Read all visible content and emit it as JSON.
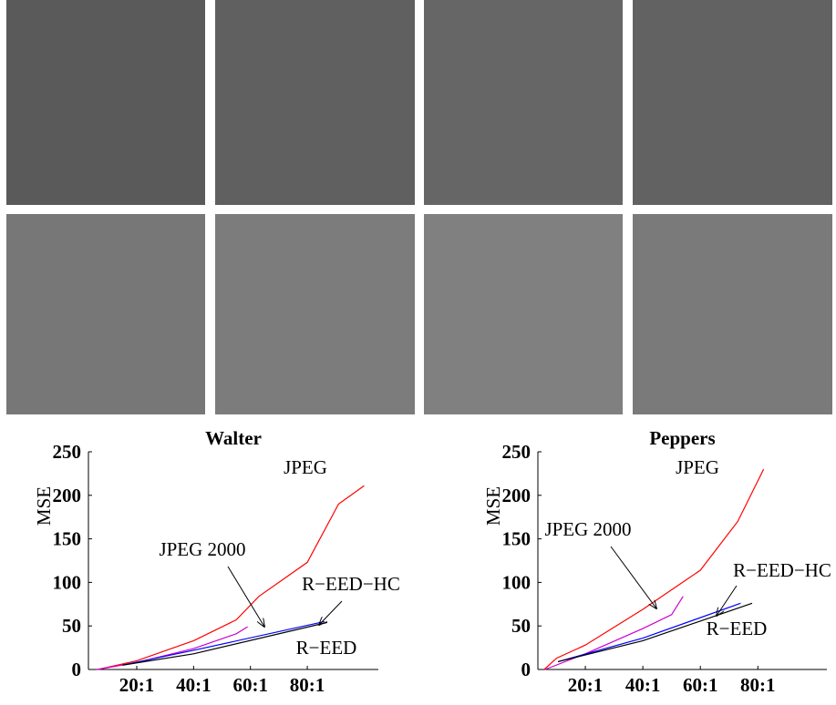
{
  "chart_data": [
    {
      "type": "line",
      "title": "Walter",
      "y_label": "MSE",
      "xlim": [
        3,
        105
      ],
      "ylim": [
        0,
        250
      ],
      "xticks": [
        {
          "value": 20,
          "label": "20:1"
        },
        {
          "value": 40,
          "label": "40:1"
        },
        {
          "value": 60,
          "label": "60:1"
        },
        {
          "value": 80,
          "label": "80:1"
        }
      ],
      "yticks": [
        0,
        50,
        100,
        150,
        200,
        250
      ],
      "annotations": [
        "JPEG",
        "JPEG 2000",
        "R−EED−HC",
        "R−EED"
      ],
      "series": [
        {
          "name": "JPEG",
          "color": "#ff0000",
          "x": [
            6.4,
            20,
            40,
            55,
            63,
            80,
            91,
            100
          ],
          "values": [
            0,
            10,
            33,
            57,
            84,
            123,
            190,
            211
          ]
        },
        {
          "name": "JPEG 2000",
          "color": "#cc00cc",
          "x": [
            6,
            20,
            40,
            55,
            59
          ],
          "values": [
            0,
            8,
            24,
            41,
            49
          ]
        },
        {
          "name": "R−EED−HC",
          "color": "#0000ff",
          "x": [
            15,
            40,
            86
          ],
          "values": [
            5,
            22,
            55
          ]
        },
        {
          "name": "R−EED",
          "color": "#000000",
          "x": [
            15,
            40,
            87
          ],
          "values": [
            5,
            18,
            54
          ]
        }
      ]
    },
    {
      "type": "line",
      "title": "Peppers",
      "y_label": "MSE",
      "xlim": [
        3.5,
        104
      ],
      "ylim": [
        0,
        250
      ],
      "xticks": [
        {
          "value": 20,
          "label": "20:1"
        },
        {
          "value": 40,
          "label": "40:1"
        },
        {
          "value": 60,
          "label": "60:1"
        },
        {
          "value": 80,
          "label": "80:1"
        }
      ],
      "yticks": [
        0,
        50,
        100,
        150,
        200,
        250
      ],
      "annotations": [
        "JPEG",
        "JPEG 2000",
        "R−EED−HC",
        "R−EED"
      ],
      "series": [
        {
          "name": "JPEG",
          "color": "#ff0000",
          "x": [
            5.7,
            10,
            20,
            40,
            60,
            73,
            82
          ],
          "values": [
            0,
            13,
            28,
            69,
            114,
            170,
            230
          ]
        },
        {
          "name": "JPEG 2000",
          "color": "#cc00cc",
          "x": [
            6,
            20,
            40,
            50,
            54
          ],
          "values": [
            0,
            18,
            47,
            63,
            84
          ]
        },
        {
          "name": "R−EED−HC",
          "color": "#0000ff",
          "x": [
            10.5,
            40,
            74
          ],
          "values": [
            9,
            36,
            76
          ]
        },
        {
          "name": "R−EED",
          "color": "#000000",
          "x": [
            10.5,
            40,
            78
          ],
          "values": [
            9,
            33,
            76
          ]
        }
      ]
    }
  ]
}
